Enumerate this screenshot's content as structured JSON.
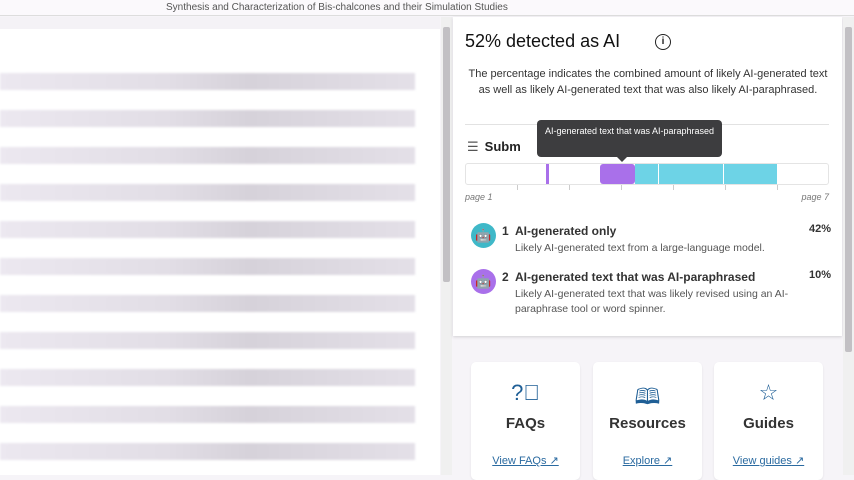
{
  "document_title": "Synthesis and Characterization of Bis-chalcones and their Simulation Studies",
  "panel": {
    "heading": "52% detected as AI",
    "description": "The percentage indicates the combined amount of likely AI-generated text as well as likely AI-generated text that was also likely AI-paraphrased.",
    "submission_label": "Subm",
    "tooltip": "AI-generated text that was AI-paraphrased",
    "page_start": "page 1",
    "page_end": "page 7",
    "bar_colors": {
      "ai_generated": "#6dd3e6",
      "ai_paraphrased": "#a970ea"
    },
    "categories": [
      {
        "index": "1",
        "title": "AI-generated only",
        "description": "Likely AI-generated text from a large-language model.",
        "percent": "42%",
        "icon": "robot-icon",
        "color": "#3fb8c8"
      },
      {
        "index": "2",
        "title": "AI-generated text that was AI-paraphrased",
        "description": "Likely AI-generated text that was likely revised using an AI-paraphrase tool or word spinner.",
        "percent": "10%",
        "icon": "robot-paraphrase-icon",
        "color": "#a970ea"
      }
    ]
  },
  "links": [
    {
      "title": "FAQs",
      "link": "View FAQs",
      "icon": "question-circle-icon"
    },
    {
      "title": "Resources",
      "link": "Explore",
      "icon": "book-icon"
    },
    {
      "title": "Guides",
      "link": "View guides",
      "icon": "star-icon"
    }
  ]
}
